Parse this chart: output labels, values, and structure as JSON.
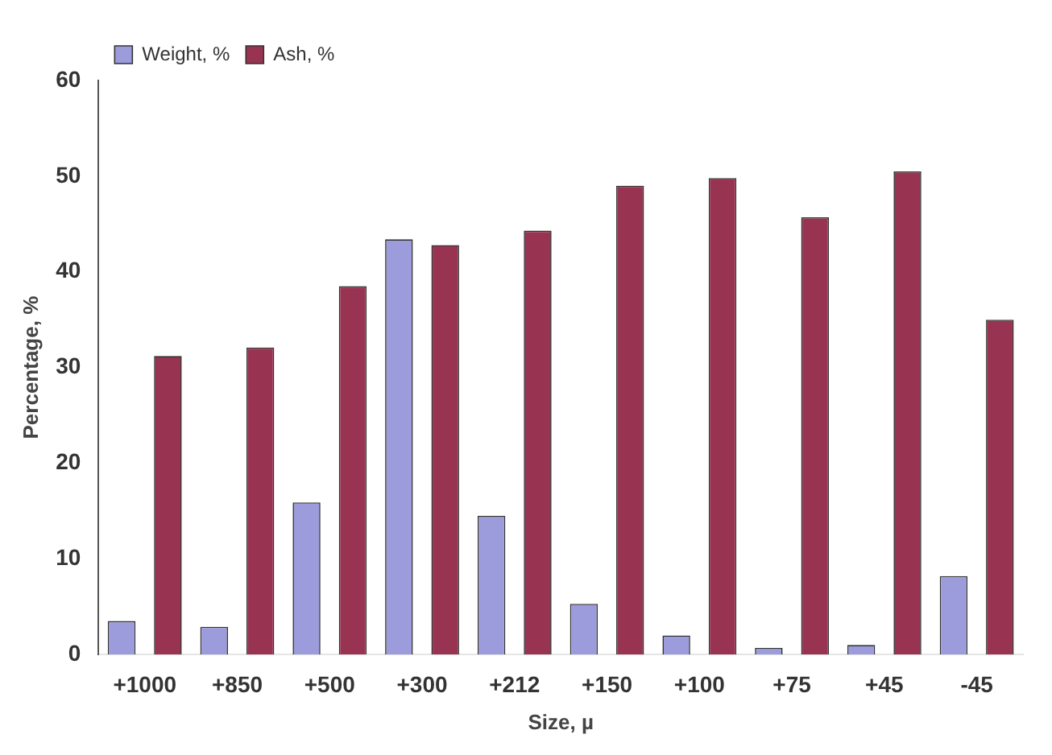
{
  "chart_data": {
    "type": "bar",
    "xlabel": "Size, µ",
    "ylabel": "Percentage, %",
    "categories": [
      "+1000",
      "+850",
      "+500",
      "+300",
      "+212",
      "+150",
      "+100",
      "+75",
      "+45",
      "-45"
    ],
    "series": [
      {
        "name": "Weight, %",
        "color": "#9c9cdc",
        "values": [
          3.5,
          2.9,
          15.9,
          43.4,
          14.5,
          5.3,
          2.0,
          0.7,
          1.0,
          8.2
        ]
      },
      {
        "name": "Ash, %",
        "color": "#993352",
        "values": [
          31.2,
          32.1,
          38.5,
          42.8,
          44.3,
          49.0,
          49.8,
          45.7,
          50.5,
          35.0
        ]
      }
    ],
    "ylim": [
      0,
      60
    ],
    "yticks": [
      0,
      10,
      20,
      30,
      40,
      50,
      60
    ],
    "grid": false,
    "legend": "top left"
  }
}
